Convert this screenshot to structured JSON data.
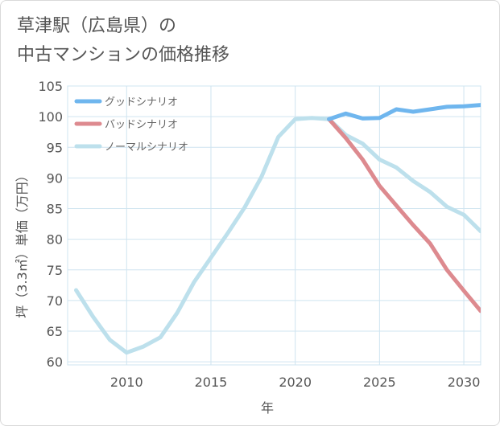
{
  "title_lines": [
    "草津駅（広島県）の",
    "中古マンションの価格推移"
  ],
  "chart_data": {
    "type": "line",
    "xlabel": "年",
    "ylabel": "坪（3.3㎡）単価（万円）",
    "xlim": [
      2006.5,
      2031
    ],
    "ylim": [
      59.5,
      105
    ],
    "x_ticks": [
      2010,
      2015,
      2020,
      2025,
      2030
    ],
    "y_ticks": [
      60,
      65,
      70,
      75,
      80,
      85,
      90,
      95,
      100,
      105
    ],
    "grid": true,
    "legend_position": "top-left",
    "series": [
      {
        "name": "グッドシナリオ",
        "color": "#6fb6ee",
        "x": [
          2022,
          2023,
          2024,
          2025,
          2026,
          2027,
          2028,
          2029,
          2030,
          2031
        ],
        "y": [
          99.6,
          100.5,
          99.7,
          99.8,
          101.2,
          100.8,
          101.2,
          101.6,
          101.7,
          101.9
        ]
      },
      {
        "name": "バッドシナリオ",
        "color": "#dd8a8f",
        "x": [
          2022,
          2023,
          2024,
          2025,
          2026,
          2027,
          2028,
          2029,
          2030,
          2031
        ],
        "y": [
          99.6,
          96.5,
          93.0,
          88.7,
          85.5,
          82.3,
          79.3,
          75.0,
          71.6,
          68.3
        ]
      },
      {
        "name": "ノーマルシナリオ",
        "color": "#bde0ec",
        "x": [
          2007,
          2008,
          2009,
          2010,
          2011,
          2012,
          2013,
          2014,
          2015,
          2016,
          2017,
          2018,
          2019,
          2020,
          2021,
          2022,
          2023,
          2024,
          2025,
          2026,
          2027,
          2028,
          2029,
          2030,
          2031
        ],
        "y": [
          71.7,
          67.4,
          63.6,
          61.5,
          62.5,
          64.0,
          68.0,
          73.0,
          77.0,
          81.0,
          85.2,
          90.2,
          96.7,
          99.6,
          99.8,
          99.6,
          97.0,
          95.6,
          93.0,
          91.7,
          89.5,
          87.7,
          85.3,
          84.0,
          81.3
        ]
      }
    ]
  }
}
